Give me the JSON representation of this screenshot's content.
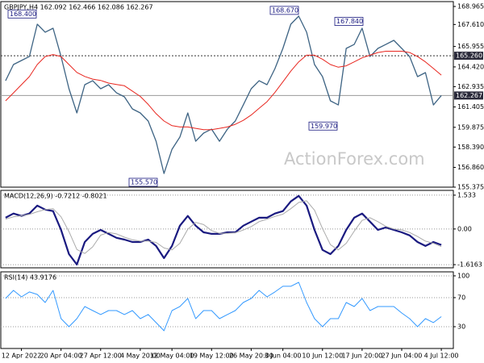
{
  "watermark": "ActionForex.com",
  "chart_data": [
    {
      "type": "line",
      "title": "GBPJPY,H4 162.092 162.466 162.086 162.267",
      "ylim": [
        155.375,
        169.33
      ],
      "yticks": [
        168.965,
        {
          "value": 167.61,
          "label": "167.610"
        },
        165.955,
        {
          "value": 164.42,
          "label": "164.420"
        },
        162.935,
        161.405,
        159.875,
        {
          "value": 158.39,
          "label": "158.390"
        },
        {
          "value": 156.86,
          "label": "156.860"
        },
        155.375
      ],
      "grid": false,
      "series": [
        {
          "name": "GBPJPY",
          "color": "#3d6383",
          "width": 1.3,
          "values": [
            163.38,
            164.6,
            164.9,
            165.2,
            167.63,
            167.03,
            167.33,
            165.2,
            162.78,
            160.96,
            163.08,
            163.38,
            162.78,
            163.08,
            162.47,
            162.17,
            161.26,
            160.96,
            160.35,
            158.83,
            156.4,
            158.22,
            159.14,
            160.96,
            158.83,
            159.44,
            159.74,
            158.83,
            159.74,
            160.35,
            161.56,
            162.78,
            163.38,
            163.08,
            164.29,
            165.81,
            167.63,
            168.24,
            167.03,
            164.6,
            163.69,
            161.87,
            161.56,
            165.81,
            166.11,
            167.33,
            165.2,
            165.81,
            166.11,
            166.42,
            165.81,
            165.2,
            163.69,
            163.99,
            161.56,
            162.27
          ]
        },
        {
          "name": "MA",
          "color": "#e8261f",
          "width": 1,
          "values": [
            161.87,
            162.47,
            163.08,
            163.69,
            164.6,
            165.2,
            165.35,
            165.2,
            164.6,
            164.0,
            163.7,
            163.5,
            163.4,
            163.2,
            163.1,
            163.0,
            162.6,
            162.2,
            161.6,
            160.9,
            160.35,
            160.0,
            159.9,
            159.9,
            159.8,
            159.7,
            159.7,
            159.8,
            159.9,
            160.1,
            160.4,
            160.8,
            161.3,
            161.8,
            162.5,
            163.3,
            164.1,
            164.8,
            165.3,
            165.3,
            165.0,
            164.6,
            164.4,
            164.5,
            164.8,
            165.1,
            165.3,
            165.5,
            165.6,
            165.6,
            165.6,
            165.5,
            165.2,
            164.8,
            164.3,
            163.8
          ]
        }
      ],
      "levels": [
        {
          "value": 165.26,
          "label": "165.260",
          "style": "dotted"
        },
        {
          "value": 162.267,
          "label": "162.267",
          "style": "solid"
        }
      ],
      "annotations": [
        {
          "value": 168.4,
          "label": "168.400"
        },
        {
          "value": 168.67,
          "label": "168.670"
        },
        {
          "value": 167.84,
          "label": "167.840"
        },
        {
          "value": 159.97,
          "label": "159.970"
        },
        {
          "value": 155.57,
          "label": "155.570"
        }
      ]
    },
    {
      "type": "line",
      "title": "MACD(12,26,9) -0.7212 -0.8021",
      "ylim": [
        -1.76,
        1.75
      ],
      "yticks": [
        1.533,
        {
          "value": 0,
          "label": "0.00"
        },
        -1.6163
      ],
      "grid": true,
      "series": [
        {
          "name": "MACD",
          "color": "#1a1a80",
          "width": 2.2,
          "values": [
            0.51,
            0.7,
            0.59,
            0.7,
            1.06,
            0.88,
            0.81,
            -0.04,
            -1.14,
            -1.61,
            -0.59,
            -0.22,
            -0.04,
            -0.22,
            -0.4,
            -0.48,
            -0.59,
            -0.59,
            -0.48,
            -0.77,
            -1.32,
            -0.77,
            0.15,
            0.59,
            0.15,
            -0.15,
            -0.22,
            -0.22,
            -0.15,
            -0.15,
            0.15,
            0.33,
            0.51,
            0.51,
            0.7,
            0.81,
            1.25,
            1.5,
            1.06,
            -0.04,
            -0.95,
            -1.14,
            -0.77,
            -0.04,
            0.51,
            0.7,
            0.33,
            -0.04,
            0.07,
            -0.04,
            -0.15,
            -0.29,
            -0.59,
            -0.77,
            -0.59,
            -0.72
          ]
        },
        {
          "name": "Signal",
          "color": "#aaaaaa",
          "width": 1,
          "values": [
            0.45,
            0.55,
            0.6,
            0.66,
            0.78,
            0.88,
            0.92,
            0.55,
            -0.12,
            -0.93,
            -1.11,
            -0.81,
            -0.28,
            -0.16,
            -0.22,
            -0.37,
            -0.49,
            -0.55,
            -0.55,
            -0.61,
            -0.86,
            -0.95,
            -0.65,
            -0.01,
            0.3,
            0.2,
            -0.07,
            -0.2,
            -0.2,
            -0.17,
            -0.05,
            0.11,
            0.33,
            0.45,
            0.57,
            0.67,
            0.92,
            1.2,
            1.28,
            0.85,
            0.02,
            -0.71,
            -0.95,
            -0.65,
            -0.1,
            0.39,
            0.51,
            0.33,
            0.12,
            0.0,
            -0.04,
            -0.16,
            -0.34,
            -0.55,
            -0.65,
            -0.8
          ]
        }
      ]
    },
    {
      "type": "line",
      "title": "RSI(14) 43.9176",
      "ylim": [
        0,
        105.5
      ],
      "yticks": [
        100,
        70,
        30
      ],
      "grid": true,
      "series": [
        {
          "name": "RSI",
          "color": "#3399ff",
          "width": 1,
          "values": [
            68.9,
            80,
            71.1,
            77.8,
            74.4,
            63.3,
            80,
            41.1,
            30,
            41.1,
            57.8,
            52.2,
            46.7,
            52.2,
            52.2,
            46.7,
            52.2,
            41.1,
            46.7,
            35.6,
            24.4,
            52.2,
            57.8,
            68.9,
            41.1,
            52.2,
            52.2,
            41.1,
            46.7,
            52.2,
            63.3,
            68.9,
            80,
            71.1,
            77.8,
            85.6,
            85.6,
            91.1,
            63.3,
            41.1,
            30,
            41.1,
            41.1,
            63.3,
            57.8,
            68.9,
            52.2,
            57.8,
            57.8,
            57.8,
            48.9,
            41.1,
            30,
            41.1,
            35.6,
            43.9
          ]
        }
      ],
      "categories": [
        null,
        null,
        "12 Apr 2022",
        null,
        null,
        null,
        null,
        "20 Apr 04:00",
        null,
        null,
        null,
        null,
        "27 Apr 12:00",
        null,
        null,
        null,
        null,
        "4 May 20:00",
        null,
        null,
        null,
        "12 May 04:00",
        null,
        null,
        null,
        null,
        "19 May 12:00",
        null,
        null,
        null,
        null,
        "26 May 20:00",
        null,
        null,
        null,
        "3 Jun 04:00",
        null,
        null,
        null,
        null,
        "10 Jun 12:00",
        null,
        null,
        null,
        null,
        "17 Jun 20:00",
        null,
        null,
        null,
        null,
        "27 Jun 04:00",
        null,
        null,
        null,
        null,
        "4 Jul 12:00"
      ]
    }
  ]
}
